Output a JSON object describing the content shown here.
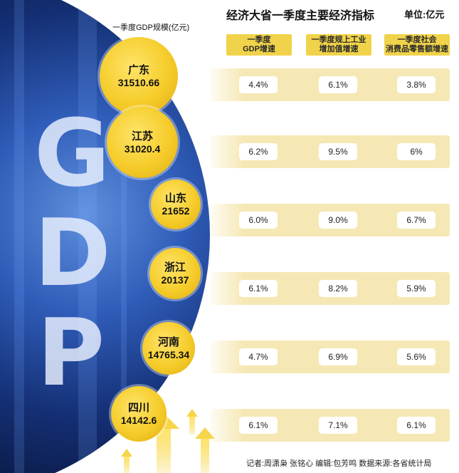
{
  "title": "经济大省一季度主要经济指标",
  "unit": "单位:亿元",
  "subtitle": "一季度GDP规模(亿元)",
  "footer": "记者:周潇枭 张铭心   编辑:包芳鸣   数据来源:各省统计局",
  "decor_letters": [
    "G",
    "D",
    "P"
  ],
  "colors": {
    "bubble": "#f5cc2a",
    "band": "#f6e8b4",
    "header": "#f0d34a",
    "panel": "#1d3f94"
  },
  "chart_data": {
    "type": "table",
    "columns": [
      "一季度\nGDP增速",
      "一季度规上工业\n增加值增速",
      "一季度社会\n消费品零售额增速"
    ],
    "rows": [
      {
        "province": "广东",
        "gdp": "31510.66",
        "values": [
          "4.4%",
          "6.1%",
          "3.8%"
        ]
      },
      {
        "province": "江苏",
        "gdp": "31020.4",
        "values": [
          "6.2%",
          "9.5%",
          "6%"
        ]
      },
      {
        "province": "山东",
        "gdp": "21652",
        "values": [
          "6.0%",
          "9.0%",
          "6.7%"
        ]
      },
      {
        "province": "浙江",
        "gdp": "20137",
        "values": [
          "6.1%",
          "8.2%",
          "5.9%"
        ]
      },
      {
        "province": "河南",
        "gdp": "14765.34",
        "values": [
          "4.7%",
          "6.9%",
          "5.6%"
        ]
      },
      {
        "province": "四川",
        "gdp": "14142.6",
        "values": [
          "6.1%",
          "7.1%",
          "6.1%"
        ]
      }
    ]
  }
}
